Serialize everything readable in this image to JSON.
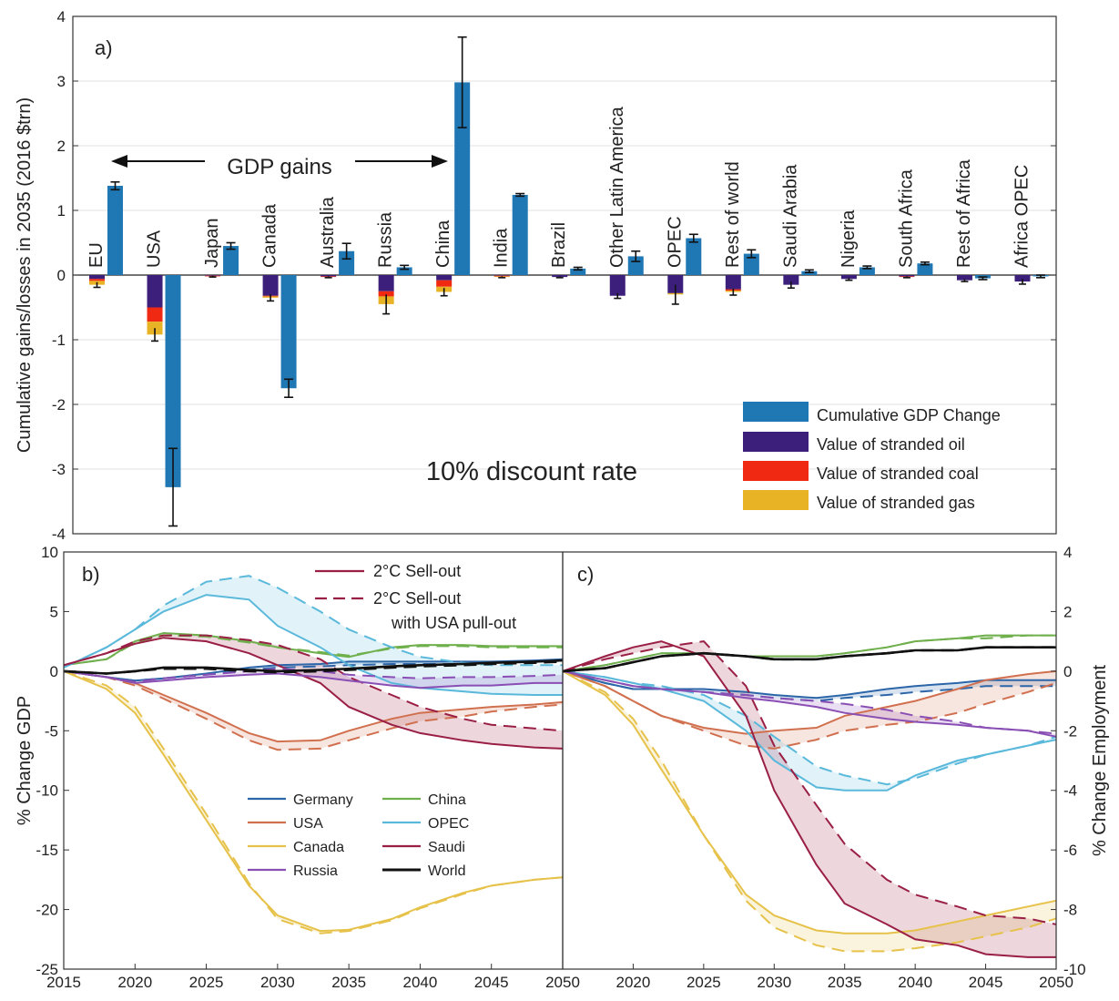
{
  "chart_data": [
    {
      "type": "bar",
      "panel_label": "a)",
      "ylabel": "Cumulative gains/losses in 2035 (2016 $trn)",
      "ylim": [
        -4,
        4
      ],
      "yticks": [
        -4,
        -3,
        -2,
        -1,
        0,
        1,
        2,
        3,
        4
      ],
      "annotation_center": "10% discount rate",
      "annotation_arrow": "GDP gains",
      "grid": true,
      "legend_position": "bottom-right",
      "legend": [
        {
          "label": "Cumulative GDP Change",
          "color": "#1f77b4"
        },
        {
          "label": "Value of stranded oil",
          "color": "#3b1f7a"
        },
        {
          "label": "Value of stranded coal",
          "color": "#f02a12"
        },
        {
          "label": "Value of stranded gas",
          "color": "#e8b425"
        }
      ],
      "categories": [
        "EU",
        "USA",
        "Japan",
        "Canada",
        "Australia",
        "Russia",
        "China",
        "India",
        "Brazil",
        "Other Latin America",
        "OPEC",
        "Rest of world",
        "Saudi Arabia",
        "Nigeria",
        "South Africa",
        "Rest of Africa",
        "Africa OPEC"
      ],
      "series": [
        {
          "name": "Cumulative GDP Change",
          "values": [
            1.38,
            -3.28,
            0.45,
            -1.75,
            0.37,
            0.12,
            2.98,
            1.24,
            0.1,
            0.29,
            0.57,
            0.33,
            0.06,
            0.12,
            0.18,
            -0.05,
            -0.02
          ],
          "error": [
            0.06,
            0.6,
            0.05,
            0.14,
            0.12,
            0.03,
            0.7,
            0.02,
            0.02,
            0.08,
            0.06,
            0.06,
            0.02,
            0.02,
            0.02,
            0.02,
            0.02
          ]
        },
        {
          "name": "Value of stranded oil",
          "values": [
            -0.06,
            -0.5,
            -0.01,
            -0.32,
            -0.02,
            -0.25,
            -0.08,
            -0.01,
            -0.03,
            -0.32,
            -0.28,
            -0.22,
            -0.15,
            -0.06,
            -0.02,
            -0.08,
            -0.1
          ]
        },
        {
          "name": "Value of stranded coal",
          "values": [
            -0.03,
            -0.22,
            -0.01,
            -0.01,
            -0.01,
            -0.08,
            -0.1,
            -0.01,
            0,
            0,
            0,
            -0.02,
            0,
            0,
            -0.01,
            0,
            0
          ]
        },
        {
          "name": "Value of stranded gas",
          "values": [
            -0.06,
            -0.2,
            0,
            -0.02,
            0,
            -0.12,
            -0.08,
            -0.01,
            0,
            0,
            -0.02,
            -0.02,
            0,
            0,
            0,
            0,
            0
          ]
        }
      ],
      "stack_error": [
        0.04,
        0.1,
        0.01,
        0.05,
        0.01,
        0.15,
        0.06,
        0.01,
        0.01,
        0.04,
        0.15,
        0.05,
        0.05,
        0.02,
        0.01,
        0.02,
        0.04
      ]
    },
    {
      "type": "line",
      "panel_label": "b)",
      "ylabel": "% Change GDP",
      "ylim": [
        -25,
        10
      ],
      "yticks": [
        -25,
        -20,
        -15,
        -10,
        -5,
        0,
        5,
        10
      ],
      "xlim": [
        2015,
        2050
      ],
      "xticks": [
        2015,
        2020,
        2025,
        2030,
        2035,
        2040,
        2045,
        2050
      ],
      "grid": false,
      "style_legend": [
        {
          "label": "2°C Sell-out",
          "dash": false
        },
        {
          "label": "2°C Sell-out",
          "label_line2": "with USA pull-out",
          "dash": true
        }
      ],
      "legend": [
        {
          "label": "Germany",
          "color": "#2c66a8"
        },
        {
          "label": "China",
          "color": "#6fb04d"
        },
        {
          "label": "USA",
          "color": "#d1704f"
        },
        {
          "label": "OPEC",
          "color": "#5ab9db"
        },
        {
          "label": "Canada",
          "color": "#e6c24a"
        },
        {
          "label": "Saudi",
          "color": "#9a1f45"
        },
        {
          "label": "Russia",
          "color": "#8a4fb5"
        },
        {
          "label": "World",
          "color": "#111111"
        }
      ],
      "x": [
        2015,
        2018,
        2020,
        2022,
        2025,
        2028,
        2030,
        2033,
        2035,
        2038,
        2040,
        2043,
        2045,
        2048,
        2050
      ],
      "series": [
        {
          "name": "Germany",
          "color": "#2c66a8",
          "values": [
            0,
            -0.5,
            -0.8,
            -0.6,
            -0.2,
            0.3,
            0.5,
            0.6,
            0.8,
            0.8,
            0.8,
            0.8,
            0.8,
            0.9,
            1.0
          ]
        },
        {
          "name": "Germany",
          "color": "#2c66a8",
          "dash": true,
          "values": [
            0,
            -0.5,
            -0.8,
            -0.6,
            -0.3,
            0.1,
            0.3,
            0.4,
            0.5,
            0.6,
            0.6,
            0.6,
            0.7,
            0.8,
            0.9
          ]
        },
        {
          "name": "China",
          "color": "#6fb04d",
          "values": [
            0.5,
            1.0,
            2.5,
            3.2,
            3.0,
            2.5,
            2.0,
            1.5,
            1.2,
            2.0,
            2.2,
            2.2,
            2.1,
            2.1,
            2.1
          ]
        },
        {
          "name": "China",
          "color": "#6fb04d",
          "dash": true,
          "values": [
            0.5,
            1.0,
            2.4,
            3.0,
            2.9,
            2.4,
            2.0,
            1.6,
            1.3,
            1.9,
            2.1,
            2.1,
            2.0,
            2.0,
            2.0
          ]
        },
        {
          "name": "USA",
          "color": "#d1704f",
          "values": [
            0,
            -0.5,
            -1.0,
            -2.0,
            -3.5,
            -5.2,
            -5.9,
            -5.8,
            -5.0,
            -4.0,
            -3.5,
            -3.2,
            -3.0,
            -2.8,
            -2.6
          ]
        },
        {
          "name": "USA",
          "color": "#d1704f",
          "dash": true,
          "values": [
            0,
            -0.5,
            -1.2,
            -2.3,
            -4.0,
            -5.8,
            -6.6,
            -6.5,
            -5.8,
            -4.8,
            -4.2,
            -3.8,
            -3.4,
            -3.0,
            -2.8
          ]
        },
        {
          "name": "OPEC",
          "color": "#5ab9db",
          "values": [
            0.3,
            2.0,
            3.5,
            5.0,
            6.4,
            6.0,
            3.8,
            2.0,
            0.5,
            -1.0,
            -1.4,
            -1.7,
            -1.9,
            -2.0,
            -2.0
          ]
        },
        {
          "name": "OPEC",
          "color": "#5ab9db",
          "dash": true,
          "values": [
            0.3,
            2.0,
            3.5,
            5.5,
            7.5,
            8.0,
            7.0,
            5.0,
            3.5,
            2.0,
            1.2,
            0.7,
            0.5,
            0.5,
            0.5
          ]
        },
        {
          "name": "Canada",
          "color": "#e6c24a",
          "values": [
            0,
            -1.5,
            -3.5,
            -7.0,
            -12.5,
            -18.0,
            -20.5,
            -21.8,
            -21.7,
            -20.8,
            -19.8,
            -18.6,
            -18.0,
            -17.5,
            -17.3
          ]
        },
        {
          "name": "Canada",
          "color": "#e6c24a",
          "dash": true,
          "values": [
            0,
            -1.2,
            -3.0,
            -6.5,
            -12.0,
            -17.8,
            -20.8,
            -22.0,
            -21.8,
            -20.9,
            -19.9,
            -18.7,
            -18.0,
            -17.5,
            -17.3
          ]
        },
        {
          "name": "Saudi",
          "color": "#9a1f45",
          "values": [
            0.5,
            1.5,
            2.3,
            2.8,
            2.5,
            1.5,
            0.5,
            -1.0,
            -3.0,
            -4.5,
            -5.2,
            -5.8,
            -6.1,
            -6.4,
            -6.5
          ]
        },
        {
          "name": "Saudi",
          "color": "#9a1f45",
          "dash": true,
          "values": [
            0.5,
            1.5,
            2.5,
            3.0,
            3.0,
            2.6,
            2.2,
            1.0,
            -0.5,
            -2.0,
            -3.0,
            -4.0,
            -4.5,
            -4.8,
            -5.0
          ]
        },
        {
          "name": "Russia",
          "color": "#8a4fb5",
          "values": [
            0,
            -0.5,
            -1.0,
            -0.8,
            -0.5,
            -0.3,
            -0.2,
            -0.5,
            -0.8,
            -1.2,
            -1.4,
            -1.2,
            -1.2,
            -1.0,
            -1.0
          ]
        },
        {
          "name": "Russia",
          "color": "#8a4fb5",
          "dash": true,
          "values": [
            0,
            -0.5,
            -0.9,
            -0.6,
            -0.3,
            0.0,
            0.2,
            0.0,
            -0.3,
            -0.5,
            -0.6,
            -0.5,
            -0.5,
            -0.4,
            -0.3
          ]
        },
        {
          "name": "World",
          "color": "#111111",
          "values": [
            0,
            -0.2,
            0.0,
            0.3,
            0.3,
            0.1,
            0.0,
            0.1,
            0.2,
            0.4,
            0.5,
            0.6,
            0.7,
            0.8,
            0.9
          ]
        },
        {
          "name": "World",
          "color": "#111111",
          "dash": true,
          "values": [
            0,
            -0.2,
            0.0,
            0.2,
            0.2,
            0.0,
            -0.1,
            0.0,
            0.1,
            0.3,
            0.4,
            0.5,
            0.6,
            0.7,
            0.8
          ]
        }
      ]
    },
    {
      "type": "line",
      "panel_label": "c)",
      "ylabel": "% Change Employment",
      "ylim": [
        -10,
        4
      ],
      "yticks": [
        -10,
        -8,
        -6,
        -4,
        -2,
        0,
        2,
        4
      ],
      "xlim": [
        2015,
        2050
      ],
      "xticks": [
        2020,
        2025,
        2030,
        2035,
        2040,
        2045,
        2050
      ],
      "grid": false,
      "x": [
        2015,
        2018,
        2020,
        2022,
        2025,
        2028,
        2030,
        2033,
        2035,
        2038,
        2040,
        2043,
        2045,
        2048,
        2050
      ],
      "series": [
        {
          "name": "Germany",
          "color": "#2c66a8",
          "values": [
            0,
            -0.4,
            -0.6,
            -0.6,
            -0.6,
            -0.7,
            -0.8,
            -0.9,
            -0.8,
            -0.6,
            -0.5,
            -0.4,
            -0.3,
            -0.3,
            -0.3
          ]
        },
        {
          "name": "Germany",
          "color": "#2c66a8",
          "dash": true,
          "values": [
            0,
            -0.4,
            -0.6,
            -0.6,
            -0.7,
            -0.8,
            -0.9,
            -1.0,
            -0.9,
            -0.8,
            -0.7,
            -0.6,
            -0.5,
            -0.5,
            -0.5
          ]
        },
        {
          "name": "China",
          "color": "#6fb04d",
          "values": [
            0,
            0.2,
            0.4,
            0.6,
            0.6,
            0.5,
            0.5,
            0.5,
            0.6,
            0.8,
            1.0,
            1.1,
            1.2,
            1.2,
            1.2
          ]
        },
        {
          "name": "China",
          "color": "#6fb04d",
          "dash": true,
          "values": [
            0,
            0.2,
            0.4,
            0.6,
            0.6,
            0.5,
            0.5,
            0.5,
            0.6,
            0.8,
            1.0,
            1.1,
            1.1,
            1.2,
            1.2
          ]
        },
        {
          "name": "USA",
          "color": "#d1704f",
          "values": [
            0,
            -0.5,
            -1.0,
            -1.5,
            -1.9,
            -2.1,
            -2.0,
            -1.9,
            -1.5,
            -1.2,
            -1.0,
            -0.6,
            -0.3,
            -0.1,
            0.0
          ]
        },
        {
          "name": "USA",
          "color": "#d1704f",
          "dash": true,
          "values": [
            0,
            -0.5,
            -1.0,
            -1.5,
            -2.0,
            -2.5,
            -2.6,
            -2.3,
            -2.0,
            -1.8,
            -1.7,
            -1.4,
            -1.1,
            -0.7,
            -0.4
          ]
        },
        {
          "name": "OPEC",
          "color": "#5ab9db",
          "values": [
            0,
            -0.2,
            -0.4,
            -0.6,
            -1.0,
            -2.0,
            -3.0,
            -3.9,
            -4.0,
            -4.0,
            -3.5,
            -3.0,
            -2.8,
            -2.5,
            -2.3
          ]
        },
        {
          "name": "OPEC",
          "color": "#5ab9db",
          "dash": true,
          "values": [
            0,
            -0.2,
            -0.4,
            -0.5,
            -0.8,
            -1.5,
            -2.2,
            -3.2,
            -3.5,
            -3.8,
            -3.6,
            -3.1,
            -2.8,
            -2.5,
            -2.2
          ]
        },
        {
          "name": "Canada",
          "color": "#e6c24a",
          "values": [
            0,
            -0.8,
            -1.8,
            -3.3,
            -5.5,
            -7.5,
            -8.2,
            -8.7,
            -8.8,
            -8.8,
            -8.7,
            -8.4,
            -8.2,
            -7.9,
            -7.7
          ]
        },
        {
          "name": "Canada",
          "color": "#e6c24a",
          "dash": true,
          "values": [
            0,
            -0.7,
            -1.6,
            -3.0,
            -5.5,
            -7.7,
            -8.6,
            -9.2,
            -9.4,
            -9.4,
            -9.3,
            -9.1,
            -8.9,
            -8.6,
            -8.3
          ]
        },
        {
          "name": "Saudi",
          "color": "#9a1f45",
          "values": [
            0,
            0.5,
            0.8,
            1.0,
            0.5,
            -1.5,
            -4.0,
            -6.5,
            -7.8,
            -8.5,
            -9.0,
            -9.2,
            -9.5,
            -9.6,
            -9.6
          ]
        },
        {
          "name": "Saudi",
          "color": "#9a1f45",
          "dash": true,
          "values": [
            0,
            0.4,
            0.6,
            0.8,
            1.0,
            -0.5,
            -2.5,
            -4.5,
            -5.8,
            -7.0,
            -7.5,
            -7.9,
            -8.2,
            -8.3,
            -8.5
          ]
        },
        {
          "name": "Russia",
          "color": "#8a4fb5",
          "values": [
            0,
            -0.3,
            -0.5,
            -0.6,
            -0.7,
            -0.9,
            -1.0,
            -1.2,
            -1.4,
            -1.6,
            -1.7,
            -1.8,
            -1.9,
            -2.0,
            -2.2
          ]
        },
        {
          "name": "Russia",
          "color": "#8a4fb5",
          "dash": true,
          "values": [
            0,
            -0.3,
            -0.5,
            -0.6,
            -0.7,
            -0.8,
            -0.9,
            -1.0,
            -1.1,
            -1.3,
            -1.5,
            -1.7,
            -1.9,
            -2.0,
            -2.1
          ]
        },
        {
          "name": "World",
          "color": "#111111",
          "values": [
            0,
            0.1,
            0.3,
            0.5,
            0.6,
            0.5,
            0.4,
            0.4,
            0.5,
            0.6,
            0.7,
            0.7,
            0.8,
            0.8,
            0.8
          ]
        },
        {
          "name": "World",
          "color": "#111111",
          "dash": true,
          "values": [
            0,
            0.1,
            0.3,
            0.5,
            0.6,
            0.5,
            0.4,
            0.4,
            0.5,
            0.6,
            0.7,
            0.7,
            0.8,
            0.8,
            0.8
          ]
        }
      ]
    }
  ]
}
